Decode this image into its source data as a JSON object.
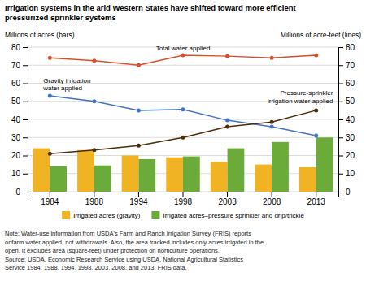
{
  "chart_data": {
    "type": "bar",
    "title": "Irrigation systems in the arid Western States have shifted toward more efficient\npressurized sprinkler systems",
    "categories": [
      "1984",
      "1988",
      "1994",
      "1998",
      "2003",
      "2008",
      "2013"
    ],
    "series": [
      {
        "name": "Irrigated acres (gravity)",
        "type": "bar",
        "color": "#F0B323",
        "values": [
          24,
          23,
          20,
          19,
          16.5,
          15,
          13.5
        ]
      },
      {
        "name": "Irrigated acres–pressure sprinkler and drip/trickle",
        "type": "bar",
        "color": "#6AAB3A",
        "values": [
          14,
          14.5,
          18,
          19.5,
          24,
          27.5,
          30
        ]
      },
      {
        "type": "line",
        "axis": "y2",
        "color": "#D94F2B",
        "marker": "circle",
        "values": [
          74,
          72.5,
          70,
          75.5,
          75,
          74,
          75.5
        ]
      },
      {
        "type": "line",
        "axis": "y2",
        "color": "#4472C4",
        "marker": "circle",
        "values": [
          53,
          50,
          45,
          45.5,
          39.5,
          36,
          31
        ]
      },
      {
        "type": "line",
        "axis": "y2",
        "color": "#4B2E0A",
        "marker": "circle",
        "values": [
          21,
          23,
          25.5,
          30,
          36,
          38.5,
          45
        ]
      }
    ],
    "ylabel": "Millions of acres (bars)",
    "y2label": "Millions of acre-feet (lines)",
    "ylim": [
      0,
      80
    ],
    "yticks": [
      0,
      10,
      20,
      30,
      40,
      50,
      60,
      70,
      80
    ],
    "y2lim": [
      0,
      80
    ],
    "y2ticks": [
      0,
      10,
      20,
      30,
      40,
      50,
      60,
      70,
      80
    ],
    "grid": true,
    "legend": "bottom",
    "annotations": [
      "Total water applied",
      "Gravity irrigation\nwater applied",
      "Pressure-sprinkler\nirrigation water applied"
    ],
    "note": "Note: Water-use information from USDA's Farm and Ranch Irrigation Survey (FRIS) reports\nonfarm water applied, not withdrawals. Also, the area tracked includes only acres irrigated in the\nopen. It excludes area (square-feet) under protection on horticulture operations.\nSource: USDA, Economic Research Service using USDA, National Agricultural Statistics\nService 1984, 1988, 1994, 1998, 2003, 2008, and 2013, FRIS data."
  }
}
